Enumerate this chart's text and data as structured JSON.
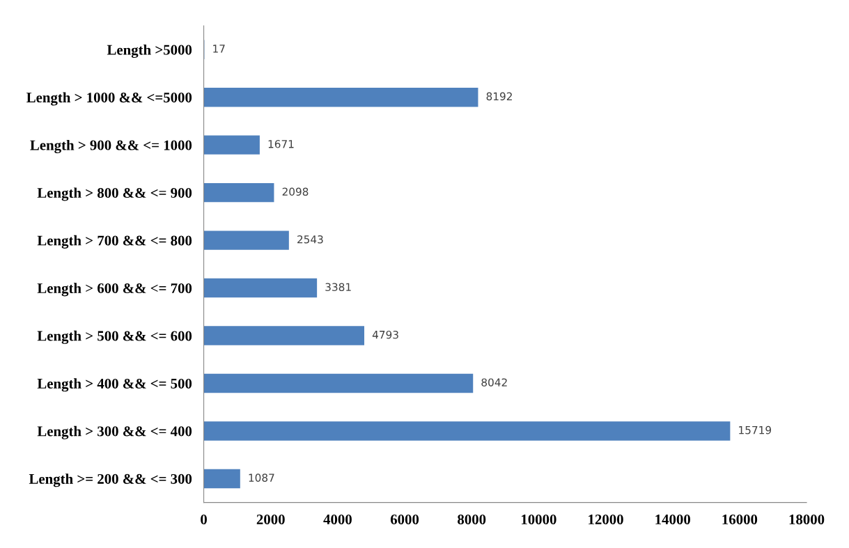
{
  "chart_data": {
    "type": "bar",
    "orientation": "horizontal",
    "categories": [
      "Length >5000",
      "Length > 1000 && <=5000",
      "Length > 900 && <= 1000",
      "Length > 800 && <= 900",
      "Length > 700 && <= 800",
      "Length > 600 && <= 700",
      "Length > 500 && <= 600",
      "Length > 400 && <= 500",
      "Length > 300 && <= 400",
      "Length >= 200 && <= 300"
    ],
    "values": [
      17,
      8192,
      1671,
      2098,
      2543,
      3381,
      4793,
      8042,
      15719,
      1087
    ],
    "color": "#4f81bd",
    "xlim": [
      0,
      18000
    ],
    "xticks": [
      0,
      2000,
      4000,
      6000,
      8000,
      10000,
      12000,
      14000,
      16000,
      18000
    ],
    "data_labels": true,
    "grid": false,
    "legend": false
  }
}
